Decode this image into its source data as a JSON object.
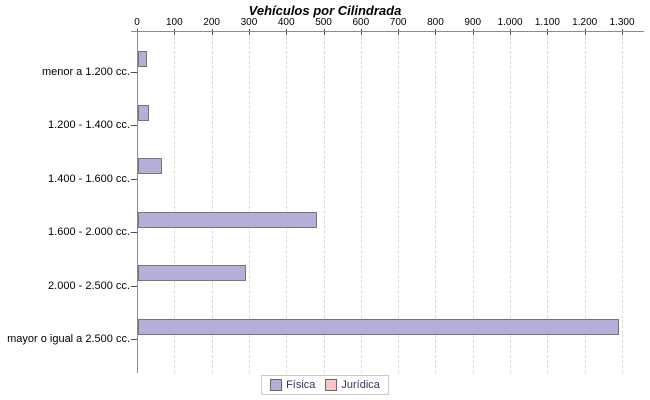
{
  "chart_data": {
    "type": "bar",
    "orientation": "horizontal",
    "title": "Vehículos por Cilindrada",
    "categories": [
      "menor a 1.200 cc.",
      "1.200 - 1.400 cc.",
      "1.400 - 1.600 cc.",
      "1.600 - 2.000 cc.",
      "2.000 - 2.500 cc.",
      "mayor o igual a 2.500 cc."
    ],
    "series": [
      {
        "name": "Física",
        "color": "#b6aed8",
        "border_color": "#757575",
        "values": [
          25,
          30,
          65,
          480,
          290,
          1290
        ]
      },
      {
        "name": "Jurídica",
        "color": "#f9c7c7",
        "border_color": "#757575",
        "values": [
          0,
          0,
          0,
          0,
          0,
          0
        ]
      }
    ],
    "value_axis": {
      "min": 0,
      "max": 1300,
      "tick_interval": 100,
      "tick_labels": [
        "0",
        "100",
        "200",
        "300",
        "400",
        "500",
        "600",
        "700",
        "800",
        "900",
        "1.000",
        "1.100",
        "1.200",
        "1.300"
      ],
      "position": "top"
    },
    "grid": "vertical-dashed",
    "legend_position": "bottom"
  }
}
